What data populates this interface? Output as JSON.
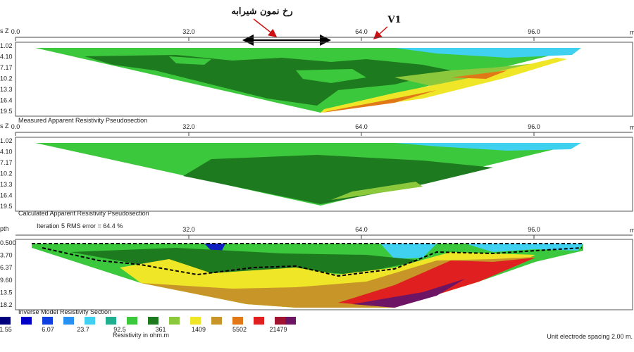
{
  "annotations": {
    "leachate_profile": "رخ نمون شیرابه",
    "v1": "V1"
  },
  "panels": [
    {
      "axis_label": "s Z",
      "x_ticks": [
        "0.0",
        "32.0",
        "64.0",
        "96.0"
      ],
      "x_unit": "m",
      "y_ticks": [
        "1.02",
        "4.10",
        "7.17",
        "10.2",
        "13.3",
        "16.4",
        "19.5"
      ],
      "title": "Measured Apparent Resistivity Pseudosection"
    },
    {
      "axis_label": "s Z",
      "x_ticks": [
        "0.0",
        "32.0",
        "64.0",
        "96.0"
      ],
      "x_unit": "m",
      "y_ticks": [
        "1.02",
        "4.10",
        "7.17",
        "10.2",
        "13.3",
        "16.4",
        "19.5"
      ],
      "title": "Calculated Apparent Resistivity Pseudosection"
    },
    {
      "note": "Iteration 5 RMS error = 64.4 %",
      "axis_label": "pth",
      "x_ticks": [
        "32.0",
        "64.0",
        "96.0"
      ],
      "x_unit": "m",
      "y_ticks": [
        "0.500",
        "3.70",
        "6.37",
        "9.60",
        "13.5",
        "18.2"
      ],
      "title": "Inverse Model Resistivity Section"
    }
  ],
  "legend": {
    "labels": [
      "1.55",
      "6.07",
      "23.7",
      "92.5",
      "361",
      "1409",
      "5502",
      "21479"
    ],
    "caption": "Resistivity in ohm.m"
  },
  "footer": "Unit electrode spacing 2.00 m."
}
